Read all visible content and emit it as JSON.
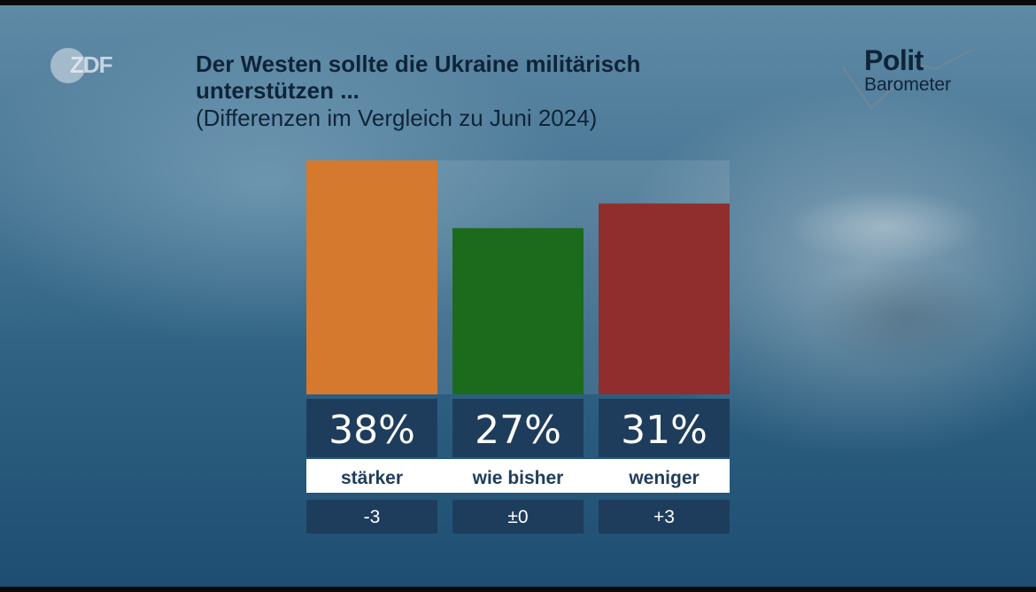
{
  "broadcaster": {
    "logo_text": "ZDF"
  },
  "brand": {
    "line1": "Polit",
    "line2": "Barometer"
  },
  "chart_data": {
    "type": "bar",
    "title": "Der Westen sollte die Ukraine militärisch unterstützen ...",
    "title_lines": [
      "Der Westen sollte die Ukraine militärisch",
      "unterstützen ..."
    ],
    "subtitle": "(Differenzen im Vergleich zu Juni 2024)",
    "categories": [
      "stärker",
      "wie bisher",
      "weniger"
    ],
    "values": [
      38,
      27,
      31
    ],
    "value_labels": [
      "38%",
      "27%",
      "31%"
    ],
    "differences": [
      "-3",
      "±0",
      "+3"
    ],
    "colors": [
      "#d4792e",
      "#1c6b1c",
      "#8f2e2d"
    ],
    "ylim": [
      0,
      38
    ],
    "grid": false,
    "legend": "none"
  }
}
